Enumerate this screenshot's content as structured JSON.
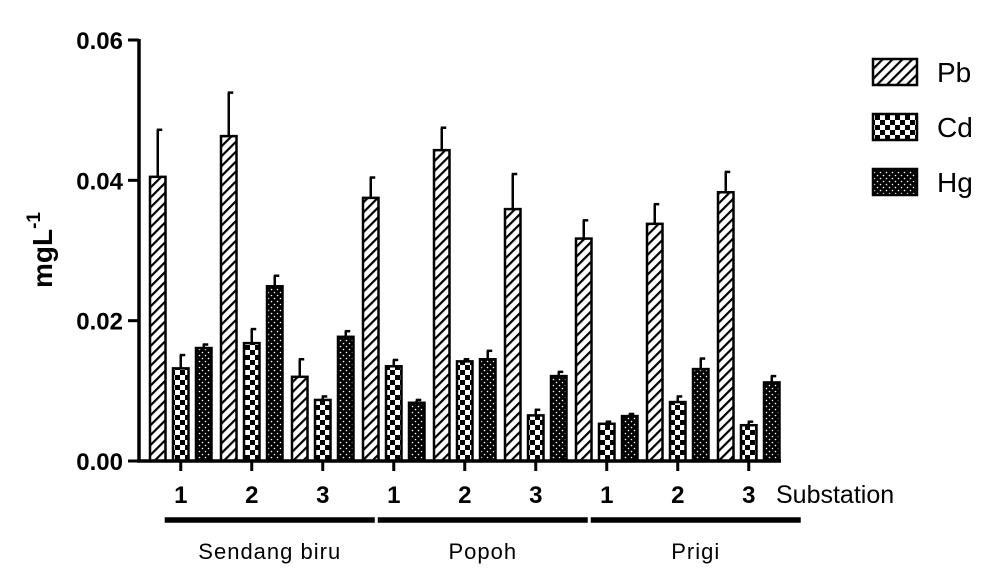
{
  "chart_data": {
    "type": "bar",
    "ylabel": "mgL",
    "ylabel_superscript": "-1",
    "xlabel": "Substation",
    "ylim": [
      0,
      0.06
    ],
    "yticks": [
      "0.00",
      "0.02",
      "0.04",
      "0.06"
    ],
    "groups": [
      {
        "name": "Sendang biru",
        "substations": [
          "1",
          "2",
          "3"
        ]
      },
      {
        "name": "Popoh",
        "substations": [
          "1",
          "2",
          "3"
        ]
      },
      {
        "name": "Prigi",
        "substations": [
          "1",
          "2",
          "3"
        ]
      }
    ],
    "categories": [
      "Sendang biru 1",
      "Sendang biru 2",
      "Sendang biru 3",
      "Popoh 1",
      "Popoh 2",
      "Popoh 3",
      "Prigi 1",
      "Prigi 2",
      "Prigi 3"
    ],
    "series": [
      {
        "name": "Pb",
        "pattern": "diagonal-hatch",
        "values": [
          0.0405,
          0.0463,
          0.012,
          0.0375,
          0.0443,
          0.0359,
          0.0317,
          0.0338,
          0.0383
        ],
        "errors": [
          0.0067,
          0.0062,
          0.0025,
          0.0029,
          0.0032,
          0.005,
          0.0026,
          0.0028,
          0.0029
        ]
      },
      {
        "name": "Cd",
        "pattern": "checkerboard",
        "values": [
          0.0132,
          0.0168,
          0.0087,
          0.0135,
          0.0142,
          0.0065,
          0.0053,
          0.0084,
          0.0051
        ],
        "errors": [
          0.0019,
          0.002,
          0.0005,
          0.0009,
          0.0003,
          0.0008,
          0.0003,
          0.0008,
          0.0005
        ]
      },
      {
        "name": "Hg",
        "pattern": "dotted",
        "values": [
          0.0161,
          0.0249,
          0.0177,
          0.0083,
          0.0145,
          0.0121,
          0.0064,
          0.0131,
          0.0112
        ],
        "errors": [
          0.0005,
          0.0015,
          0.0008,
          0.0004,
          0.0012,
          0.0006,
          0.0003,
          0.0015,
          0.0009
        ]
      }
    ],
    "legend_position": "right",
    "grid": false
  }
}
